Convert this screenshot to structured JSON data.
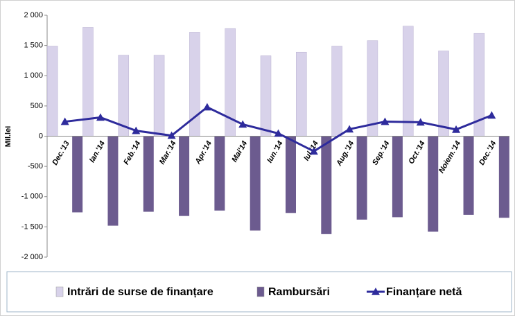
{
  "chart_data": {
    "type": "bar_line",
    "y_label": "Mil.lei",
    "categories": [
      "Dec.'13",
      "Ian.'14",
      "Feb.'14",
      "Mar.'14",
      "Apr.'14",
      "Mai'14",
      "Iun.'14",
      "Iul.'14",
      "Aug.'14",
      "Sep.'14",
      "Oct.'14",
      "Noiem.'14",
      "Dec.'14"
    ],
    "series": [
      {
        "name": "Intrări de surse de finanțare",
        "type": "bar",
        "color": "#d8d2ea",
        "values": [
          1490,
          1800,
          1340,
          1340,
          1720,
          1780,
          1330,
          1390,
          1490,
          1580,
          1820,
          1410,
          1700
        ]
      },
      {
        "name": "Rambursări",
        "type": "bar",
        "color": "#6c5b8f",
        "values": [
          -1260,
          -1480,
          -1250,
          -1320,
          -1230,
          -1560,
          -1270,
          -1620,
          -1380,
          -1340,
          -1580,
          -1300,
          -1350
        ]
      },
      {
        "name": "Finanțare netă",
        "type": "line",
        "color": "#2e2b9c",
        "values": [
          240,
          310,
          90,
          10,
          480,
          195,
          45,
          -250,
          115,
          240,
          230,
          110,
          345
        ]
      }
    ],
    "ylim": [
      -2000,
      2000
    ],
    "yticks": [
      {
        "value": -2000,
        "label": "-2 000"
      },
      {
        "value": -1500,
        "label": "-1 500"
      },
      {
        "value": -1000,
        "label": "-1 000"
      },
      -500,
      0,
      500,
      {
        "value": 1000,
        "label": "1 000"
      },
      {
        "value": 1500,
        "label": "1 500"
      },
      {
        "value": 2000,
        "label": "2 000"
      }
    ],
    "grid": false,
    "legend": "bottom"
  }
}
